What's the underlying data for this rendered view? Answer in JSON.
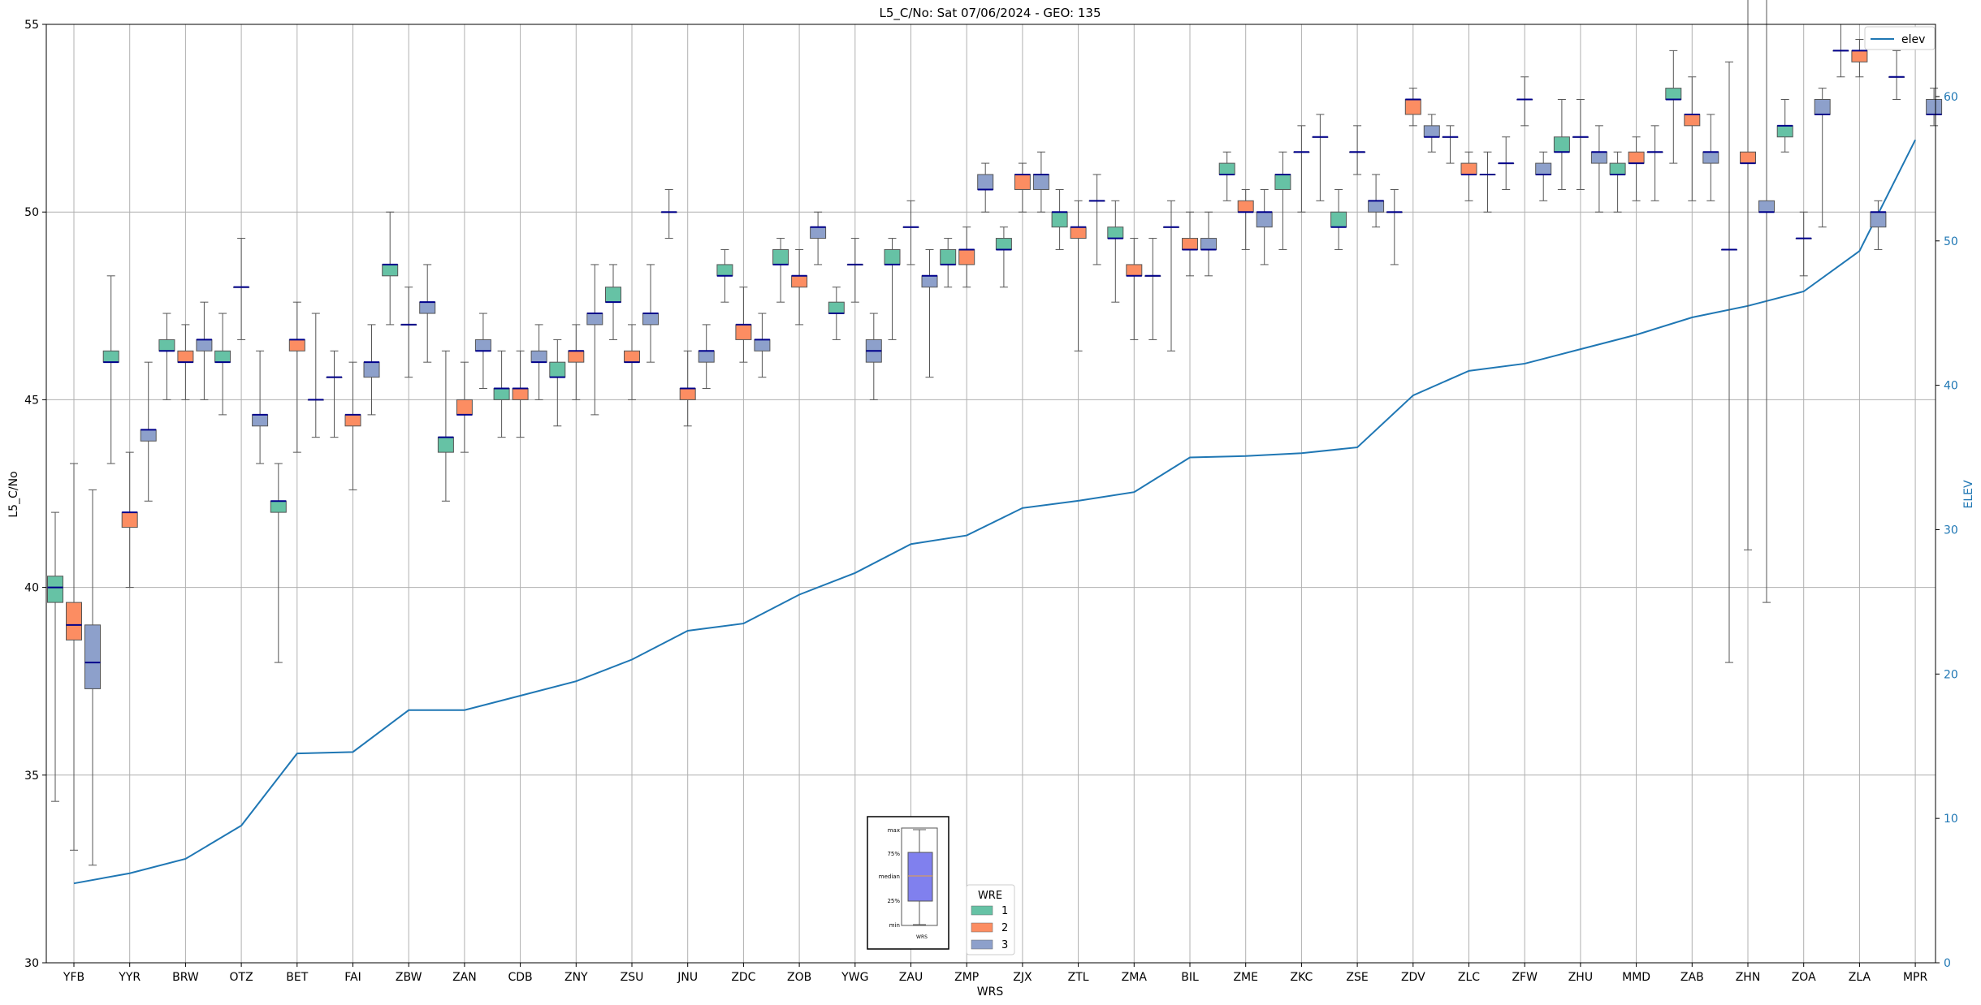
{
  "chart_data": {
    "type": "box",
    "title": "L5_C/No: Sat 07/06/2024 - GEO: 135",
    "xlabel": "WRS",
    "ylabel": "L5_C/No",
    "y2label": "ELEV",
    "ylim": [
      30,
      55
    ],
    "y2lim": [
      0,
      65
    ],
    "yticks": [
      30,
      35,
      40,
      45,
      50,
      55
    ],
    "y2ticks": [
      0,
      10,
      20,
      30,
      40,
      50,
      60
    ],
    "grid": true,
    "categories": [
      "YFB",
      "YYR",
      "BRW",
      "OTZ",
      "BET",
      "FAI",
      "ZBW",
      "ZAN",
      "CDB",
      "ZNY",
      "ZSU",
      "JNU",
      "ZDC",
      "ZOB",
      "YWG",
      "ZAU",
      "ZMP",
      "ZJX",
      "ZTL",
      "ZMA",
      "BIL",
      "ZME",
      "ZKC",
      "ZSE",
      "ZDV",
      "ZLC",
      "ZFW",
      "ZHU",
      "MMD",
      "ZAB",
      "ZHN",
      "ZOA",
      "ZLA",
      "MPR"
    ],
    "hue_title": "WRE",
    "hue_levels": [
      "1",
      "2",
      "3"
    ],
    "colors": {
      "1": "#66c2a5",
      "2": "#fc8d62",
      "3": "#8da0cb",
      "median": "#00008b",
      "elev": "#1f77b4",
      "inset_box": "#8080ee",
      "inset_median": "#e8a040"
    },
    "boxes": [
      {
        "cat": "YFB",
        "wre": "1",
        "min": 34.3,
        "q1": 39.6,
        "median": 40.0,
        "q3": 40.3,
        "max": 42.0
      },
      {
        "cat": "YFB",
        "wre": "2",
        "min": 33.0,
        "q1": 38.6,
        "median": 39.0,
        "q3": 39.6,
        "max": 43.3
      },
      {
        "cat": "YFB",
        "wre": "3",
        "min": 32.6,
        "q1": 37.3,
        "median": 38.0,
        "q3": 39.0,
        "max": 42.6
      },
      {
        "cat": "YYR",
        "wre": "1",
        "min": 43.3,
        "q1": 46.0,
        "median": 46.0,
        "q3": 46.3,
        "max": 48.3
      },
      {
        "cat": "YYR",
        "wre": "2",
        "min": 40.0,
        "q1": 41.6,
        "median": 42.0,
        "q3": 42.0,
        "max": 43.6
      },
      {
        "cat": "YYR",
        "wre": "3",
        "min": 42.3,
        "q1": 43.9,
        "median": 44.2,
        "q3": 44.2,
        "max": 46.0
      },
      {
        "cat": "BRW",
        "wre": "1",
        "min": 45.0,
        "q1": 46.3,
        "median": 46.3,
        "q3": 46.6,
        "max": 47.3
      },
      {
        "cat": "BRW",
        "wre": "2",
        "min": 45.0,
        "q1": 46.0,
        "median": 46.0,
        "q3": 46.3,
        "max": 47.0
      },
      {
        "cat": "BRW",
        "wre": "3",
        "min": 45.0,
        "q1": 46.3,
        "median": 46.6,
        "q3": 46.6,
        "max": 47.6
      },
      {
        "cat": "OTZ",
        "wre": "1",
        "min": 44.6,
        "q1": 46.0,
        "median": 46.0,
        "q3": 46.3,
        "max": 47.3
      },
      {
        "cat": "OTZ",
        "wre": "2",
        "min": 46.6,
        "q1": 48.0,
        "median": 48.0,
        "q3": 48.0,
        "max": 49.3
      },
      {
        "cat": "OTZ",
        "wre": "3",
        "min": 43.3,
        "q1": 44.3,
        "median": 44.6,
        "q3": 44.6,
        "max": 46.3
      },
      {
        "cat": "BET",
        "wre": "1",
        "min": 38.0,
        "q1": 42.0,
        "median": 42.3,
        "q3": 42.3,
        "max": 43.3
      },
      {
        "cat": "BET",
        "wre": "2",
        "min": 43.6,
        "q1": 46.3,
        "median": 46.6,
        "q3": 46.6,
        "max": 47.6
      },
      {
        "cat": "BET",
        "wre": "3",
        "min": 44.0,
        "q1": 45.0,
        "median": 45.0,
        "q3": 45.0,
        "max": 47.3
      },
      {
        "cat": "FAI",
        "wre": "1",
        "min": 44.0,
        "q1": 45.6,
        "median": 45.6,
        "q3": 45.6,
        "max": 46.3
      },
      {
        "cat": "FAI",
        "wre": "2",
        "min": 42.6,
        "q1": 44.3,
        "median": 44.6,
        "q3": 44.6,
        "max": 46.0
      },
      {
        "cat": "FAI",
        "wre": "3",
        "min": 44.6,
        "q1": 45.6,
        "median": 46.0,
        "q3": 46.0,
        "max": 47.0
      },
      {
        "cat": "ZBW",
        "wre": "1",
        "min": 47.0,
        "q1": 48.3,
        "median": 48.6,
        "q3": 48.6,
        "max": 50.0
      },
      {
        "cat": "ZBW",
        "wre": "2",
        "min": 45.6,
        "q1": 47.0,
        "median": 47.0,
        "q3": 47.0,
        "max": 48.0
      },
      {
        "cat": "ZBW",
        "wre": "3",
        "min": 46.0,
        "q1": 47.3,
        "median": 47.6,
        "q3": 47.6,
        "max": 48.6
      },
      {
        "cat": "ZAN",
        "wre": "1",
        "min": 42.3,
        "q1": 43.6,
        "median": 44.0,
        "q3": 44.0,
        "max": 46.3
      },
      {
        "cat": "ZAN",
        "wre": "2",
        "min": 43.6,
        "q1": 44.6,
        "median": 44.6,
        "q3": 45.0,
        "max": 46.0
      },
      {
        "cat": "ZAN",
        "wre": "3",
        "min": 45.3,
        "q1": 46.3,
        "median": 46.3,
        "q3": 46.6,
        "max": 47.3
      },
      {
        "cat": "CDB",
        "wre": "1",
        "min": 44.0,
        "q1": 45.0,
        "median": 45.3,
        "q3": 45.3,
        "max": 46.3
      },
      {
        "cat": "CDB",
        "wre": "2",
        "min": 44.0,
        "q1": 45.0,
        "median": 45.3,
        "q3": 45.3,
        "max": 46.3
      },
      {
        "cat": "CDB",
        "wre": "3",
        "min": 45.0,
        "q1": 46.0,
        "median": 46.0,
        "q3": 46.3,
        "max": 47.0
      },
      {
        "cat": "ZNY",
        "wre": "1",
        "min": 44.3,
        "q1": 45.6,
        "median": 45.6,
        "q3": 46.0,
        "max": 46.6
      },
      {
        "cat": "ZNY",
        "wre": "2",
        "min": 45.0,
        "q1": 46.0,
        "median": 46.3,
        "q3": 46.3,
        "max": 47.0
      },
      {
        "cat": "ZNY",
        "wre": "3",
        "min": 44.6,
        "q1": 47.0,
        "median": 47.3,
        "q3": 47.3,
        "max": 48.6
      },
      {
        "cat": "ZSU",
        "wre": "1",
        "min": 46.6,
        "q1": 47.6,
        "median": 47.6,
        "q3": 48.0,
        "max": 48.6
      },
      {
        "cat": "ZSU",
        "wre": "2",
        "min": 45.0,
        "q1": 46.0,
        "median": 46.0,
        "q3": 46.3,
        "max": 47.0
      },
      {
        "cat": "ZSU",
        "wre": "3",
        "min": 46.0,
        "q1": 47.0,
        "median": 47.3,
        "q3": 47.3,
        "max": 48.6
      },
      {
        "cat": "JNU",
        "wre": "1",
        "min": 49.3,
        "q1": 50.0,
        "median": 50.0,
        "q3": 50.0,
        "max": 50.6
      },
      {
        "cat": "JNU",
        "wre": "2",
        "min": 44.3,
        "q1": 45.0,
        "median": 45.3,
        "q3": 45.3,
        "max": 46.3
      },
      {
        "cat": "JNU",
        "wre": "3",
        "min": 45.3,
        "q1": 46.0,
        "median": 46.3,
        "q3": 46.3,
        "max": 47.0
      },
      {
        "cat": "ZDC",
        "wre": "1",
        "min": 47.6,
        "q1": 48.3,
        "median": 48.3,
        "q3": 48.6,
        "max": 49.0
      },
      {
        "cat": "ZDC",
        "wre": "2",
        "min": 46.0,
        "q1": 46.6,
        "median": 47.0,
        "q3": 47.0,
        "max": 48.0
      },
      {
        "cat": "ZDC",
        "wre": "3",
        "min": 45.6,
        "q1": 46.3,
        "median": 46.6,
        "q3": 46.6,
        "max": 47.3
      },
      {
        "cat": "ZOB",
        "wre": "1",
        "min": 47.6,
        "q1": 48.6,
        "median": 48.6,
        "q3": 49.0,
        "max": 49.3
      },
      {
        "cat": "ZOB",
        "wre": "2",
        "min": 47.0,
        "q1": 48.0,
        "median": 48.3,
        "q3": 48.3,
        "max": 49.0
      },
      {
        "cat": "ZOB",
        "wre": "3",
        "min": 48.6,
        "q1": 49.3,
        "median": 49.6,
        "q3": 49.6,
        "max": 50.0
      },
      {
        "cat": "YWG",
        "wre": "1",
        "min": 46.6,
        "q1": 47.3,
        "median": 47.3,
        "q3": 47.6,
        "max": 48.0
      },
      {
        "cat": "YWG",
        "wre": "2",
        "min": 47.6,
        "q1": 48.6,
        "median": 48.6,
        "q3": 48.6,
        "max": 49.3
      },
      {
        "cat": "YWG",
        "wre": "3",
        "min": 45.0,
        "q1": 46.0,
        "median": 46.3,
        "q3": 46.6,
        "max": 47.3
      },
      {
        "cat": "ZAU",
        "wre": "1",
        "min": 46.6,
        "q1": 48.6,
        "median": 48.6,
        "q3": 49.0,
        "max": 49.3
      },
      {
        "cat": "ZAU",
        "wre": "2",
        "min": 48.6,
        "q1": 49.6,
        "median": 49.6,
        "q3": 49.6,
        "max": 50.3
      },
      {
        "cat": "ZAU",
        "wre": "3",
        "min": 45.6,
        "q1": 48.0,
        "median": 48.3,
        "q3": 48.3,
        "max": 49.0
      },
      {
        "cat": "ZMP",
        "wre": "1",
        "min": 48.0,
        "q1": 48.6,
        "median": 48.6,
        "q3": 49.0,
        "max": 49.3
      },
      {
        "cat": "ZMP",
        "wre": "2",
        "min": 48.0,
        "q1": 48.6,
        "median": 49.0,
        "q3": 49.0,
        "max": 49.6
      },
      {
        "cat": "ZMP",
        "wre": "3",
        "min": 50.0,
        "q1": 50.6,
        "median": 50.6,
        "q3": 51.0,
        "max": 51.3
      },
      {
        "cat": "ZJX",
        "wre": "1",
        "min": 48.0,
        "q1": 49.0,
        "median": 49.0,
        "q3": 49.3,
        "max": 49.6
      },
      {
        "cat": "ZJX",
        "wre": "2",
        "min": 50.0,
        "q1": 50.6,
        "median": 51.0,
        "q3": 51.0,
        "max": 51.3
      },
      {
        "cat": "ZJX",
        "wre": "3",
        "min": 50.0,
        "q1": 50.6,
        "median": 51.0,
        "q3": 51.0,
        "max": 51.6
      },
      {
        "cat": "ZTL",
        "wre": "1",
        "min": 49.0,
        "q1": 49.6,
        "median": 50.0,
        "q3": 50.0,
        "max": 50.6
      },
      {
        "cat": "ZTL",
        "wre": "2",
        "min": 46.3,
        "q1": 49.3,
        "median": 49.6,
        "q3": 49.6,
        "max": 50.3
      },
      {
        "cat": "ZTL",
        "wre": "3",
        "min": 48.6,
        "q1": 50.3,
        "median": 50.3,
        "q3": 50.3,
        "max": 51.0
      },
      {
        "cat": "ZMA",
        "wre": "1",
        "min": 47.6,
        "q1": 49.3,
        "median": 49.3,
        "q3": 49.6,
        "max": 50.3
      },
      {
        "cat": "ZMA",
        "wre": "2",
        "min": 46.6,
        "q1": 48.3,
        "median": 48.3,
        "q3": 48.6,
        "max": 49.3
      },
      {
        "cat": "ZMA",
        "wre": "3",
        "min": 46.6,
        "q1": 48.3,
        "median": 48.3,
        "q3": 48.3,
        "max": 49.3
      },
      {
        "cat": "BIL",
        "wre": "1",
        "min": 46.3,
        "q1": 49.6,
        "median": 49.6,
        "q3": 49.6,
        "max": 50.3
      },
      {
        "cat": "BIL",
        "wre": "2",
        "min": 48.3,
        "q1": 49.0,
        "median": 49.0,
        "q3": 49.3,
        "max": 50.0
      },
      {
        "cat": "BIL",
        "wre": "3",
        "min": 48.3,
        "q1": 49.0,
        "median": 49.0,
        "q3": 49.3,
        "max": 50.0
      },
      {
        "cat": "ZME",
        "wre": "1",
        "min": 50.3,
        "q1": 51.0,
        "median": 51.0,
        "q3": 51.3,
        "max": 51.6
      },
      {
        "cat": "ZME",
        "wre": "2",
        "min": 49.0,
        "q1": 50.0,
        "median": 50.0,
        "q3": 50.3,
        "max": 50.6
      },
      {
        "cat": "ZME",
        "wre": "3",
        "min": 48.6,
        "q1": 49.6,
        "median": 50.0,
        "q3": 50.0,
        "max": 50.6
      },
      {
        "cat": "ZKC",
        "wre": "1",
        "min": 49.0,
        "q1": 50.6,
        "median": 51.0,
        "q3": 51.0,
        "max": 51.6
      },
      {
        "cat": "ZKC",
        "wre": "2",
        "min": 50.0,
        "q1": 51.6,
        "median": 51.6,
        "q3": 51.6,
        "max": 52.3
      },
      {
        "cat": "ZKC",
        "wre": "3",
        "min": 50.3,
        "q1": 52.0,
        "median": 52.0,
        "q3": 52.0,
        "max": 52.6
      },
      {
        "cat": "ZSE",
        "wre": "1",
        "min": 49.0,
        "q1": 49.6,
        "median": 49.6,
        "q3": 50.0,
        "max": 50.6
      },
      {
        "cat": "ZSE",
        "wre": "2",
        "min": 51.0,
        "q1": 51.6,
        "median": 51.6,
        "q3": 51.6,
        "max": 52.3
      },
      {
        "cat": "ZSE",
        "wre": "3",
        "min": 49.6,
        "q1": 50.0,
        "median": 50.3,
        "q3": 50.3,
        "max": 51.0
      },
      {
        "cat": "ZDV",
        "wre": "1",
        "min": 48.6,
        "q1": 50.0,
        "median": 50.0,
        "q3": 50.0,
        "max": 50.6
      },
      {
        "cat": "ZDV",
        "wre": "2",
        "min": 52.3,
        "q1": 52.6,
        "median": 53.0,
        "q3": 53.0,
        "max": 53.3
      },
      {
        "cat": "ZDV",
        "wre": "3",
        "min": 51.6,
        "q1": 52.0,
        "median": 52.0,
        "q3": 52.3,
        "max": 52.6
      },
      {
        "cat": "ZLC",
        "wre": "1",
        "min": 51.3,
        "q1": 52.0,
        "median": 52.0,
        "q3": 52.0,
        "max": 52.3
      },
      {
        "cat": "ZLC",
        "wre": "2",
        "min": 50.3,
        "q1": 51.0,
        "median": 51.0,
        "q3": 51.3,
        "max": 51.6
      },
      {
        "cat": "ZLC",
        "wre": "3",
        "min": 50.0,
        "q1": 51.0,
        "median": 51.0,
        "q3": 51.0,
        "max": 51.6
      },
      {
        "cat": "ZFW",
        "wre": "1",
        "min": 50.6,
        "q1": 51.3,
        "median": 51.3,
        "q3": 51.3,
        "max": 52.0
      },
      {
        "cat": "ZFW",
        "wre": "2",
        "min": 52.3,
        "q1": 53.0,
        "median": 53.0,
        "q3": 53.0,
        "max": 53.6
      },
      {
        "cat": "ZFW",
        "wre": "3",
        "min": 50.3,
        "q1": 51.0,
        "median": 51.0,
        "q3": 51.3,
        "max": 51.6
      },
      {
        "cat": "ZHU",
        "wre": "1",
        "min": 50.6,
        "q1": 51.6,
        "median": 51.6,
        "q3": 52.0,
        "max": 53.0
      },
      {
        "cat": "ZHU",
        "wre": "2",
        "min": 50.6,
        "q1": 52.0,
        "median": 52.0,
        "q3": 52.0,
        "max": 53.0
      },
      {
        "cat": "ZHU",
        "wre": "3",
        "min": 50.0,
        "q1": 51.3,
        "median": 51.6,
        "q3": 51.6,
        "max": 52.3
      },
      {
        "cat": "MMD",
        "wre": "1",
        "min": 50.0,
        "q1": 51.0,
        "median": 51.0,
        "q3": 51.3,
        "max": 51.6
      },
      {
        "cat": "MMD",
        "wre": "2",
        "min": 50.3,
        "q1": 51.3,
        "median": 51.3,
        "q3": 51.6,
        "max": 52.0
      },
      {
        "cat": "MMD",
        "wre": "3",
        "min": 50.3,
        "q1": 51.6,
        "median": 51.6,
        "q3": 51.6,
        "max": 52.3
      },
      {
        "cat": "ZAB",
        "wre": "1",
        "min": 51.3,
        "q1": 53.0,
        "median": 53.0,
        "q3": 53.3,
        "max": 54.3
      },
      {
        "cat": "ZAB",
        "wre": "2",
        "min": 50.3,
        "q1": 52.3,
        "median": 52.6,
        "q3": 52.6,
        "max": 53.6
      },
      {
        "cat": "ZAB",
        "wre": "3",
        "min": 50.3,
        "q1": 51.3,
        "median": 51.6,
        "q3": 51.6,
        "max": 52.6
      },
      {
        "cat": "ZHN",
        "wre": "1",
        "min": 38.0,
        "q1": 49.0,
        "median": 49.0,
        "q3": 49.0,
        "max": 54.0
      },
      {
        "cat": "ZHN",
        "wre": "2",
        "min": 41.0,
        "q1": 51.3,
        "median": 51.3,
        "q3": 51.6,
        "max": 57.0
      },
      {
        "cat": "ZHN",
        "wre": "3",
        "min": 39.6,
        "q1": 50.0,
        "median": 50.0,
        "q3": 50.3,
        "max": 57.0
      },
      {
        "cat": "ZOA",
        "wre": "1",
        "min": 51.6,
        "q1": 52.0,
        "median": 52.3,
        "q3": 52.3,
        "max": 53.0
      },
      {
        "cat": "ZOA",
        "wre": "2",
        "min": 48.3,
        "q1": 49.3,
        "median": 49.3,
        "q3": 49.3,
        "max": 50.0
      },
      {
        "cat": "ZOA",
        "wre": "3",
        "min": 49.6,
        "q1": 52.6,
        "median": 52.6,
        "q3": 53.0,
        "max": 53.3
      },
      {
        "cat": "ZLA",
        "wre": "1",
        "min": 53.6,
        "q1": 54.3,
        "median": 54.3,
        "q3": 54.3,
        "max": 55.0
      },
      {
        "cat": "ZLA",
        "wre": "2",
        "min": 53.6,
        "q1": 54.0,
        "median": 54.3,
        "q3": 54.3,
        "max": 54.6
      },
      {
        "cat": "ZLA",
        "wre": "3",
        "min": 49.0,
        "q1": 49.6,
        "median": 50.0,
        "q3": 50.0,
        "max": 50.3
      },
      {
        "cat": "MPR",
        "wre": "1",
        "min": 53.0,
        "q1": 53.6,
        "median": 53.6,
        "q3": 53.6,
        "max": 54.3
      },
      {
        "cat": "MPR",
        "wre": "3",
        "min": 52.3,
        "q1": 52.6,
        "median": 52.6,
        "q3": 53.0,
        "max": 53.3
      }
    ],
    "elev_series": {
      "name": "elev",
      "values": [
        5.5,
        6.2,
        7.2,
        9.5,
        14.5,
        14.6,
        17.5,
        17.5,
        18.5,
        19.5,
        21.0,
        23.0,
        23.5,
        25.5,
        27.0,
        29.0,
        29.6,
        31.5,
        32.0,
        32.6,
        35.0,
        35.1,
        35.3,
        35.7,
        39.3,
        41.0,
        41.5,
        42.5,
        43.5,
        44.7,
        45.5,
        46.5,
        49.3,
        57.0
      ]
    },
    "legend_position": "lower-center",
    "elev_legend_position": "upper-right"
  },
  "legend_inset": {
    "labels": [
      "max",
      "75%",
      "median",
      "25%",
      "min"
    ],
    "xlabel": "WRS"
  }
}
